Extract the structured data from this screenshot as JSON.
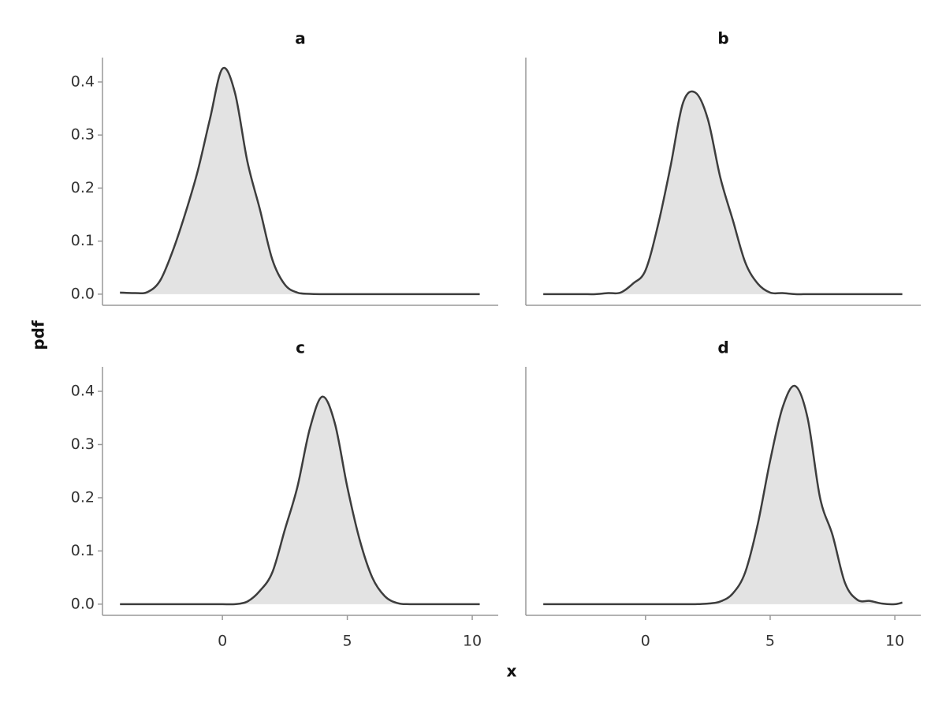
{
  "xlabel": "x",
  "ylabel": "pdf",
  "chart_data": [
    {
      "type": "area",
      "title": "a",
      "color": "#e3e3e3",
      "line_color": "#3d3d3d",
      "x": [
        -4.1,
        -3.5,
        -3,
        -2.5,
        -2,
        -1.5,
        -1,
        -0.5,
        0,
        0.5,
        1,
        1.5,
        2,
        2.5,
        3,
        3.5,
        4,
        4.5,
        5,
        5.5,
        6,
        6.5,
        7,
        7.5,
        8,
        8.5,
        9,
        9.5,
        10,
        10.3
      ],
      "values": [
        0.003,
        0.002,
        0.004,
        0.025,
        0.08,
        0.15,
        0.23,
        0.33,
        0.425,
        0.38,
        0.25,
        0.16,
        0.065,
        0.018,
        0.003,
        0.0005,
        0,
        0,
        0,
        0,
        0,
        0,
        0,
        0,
        0,
        0,
        0,
        0,
        0,
        0
      ],
      "xlim": [
        -4.8,
        11.04
      ],
      "ylim": [
        -0.021,
        0.446
      ],
      "yticks": [
        {
          "value": 0,
          "label": "0.0"
        },
        0.1,
        0.2,
        0.3,
        0.4
      ]
    },
    {
      "type": "area",
      "title": "b",
      "color": "#e3e3e3",
      "line_color": "#3d3d3d",
      "x": [
        -4.1,
        -3.5,
        -3,
        -2.5,
        -2,
        -1.5,
        -1,
        -0.5,
        0,
        0.5,
        1,
        1.5,
        2,
        2.5,
        3,
        3.5,
        4,
        4.5,
        5,
        5.5,
        6,
        6.5,
        7,
        7.5,
        8,
        8.5,
        9,
        9.5,
        10,
        10.3
      ],
      "values": [
        0,
        0,
        0,
        0,
        0,
        0.002,
        0.003,
        0.02,
        0.045,
        0.13,
        0.24,
        0.36,
        0.38,
        0.33,
        0.22,
        0.14,
        0.06,
        0.02,
        0.003,
        0.002,
        0,
        0,
        0,
        0,
        0,
        0,
        0,
        0,
        0,
        0
      ],
      "xlim": [
        -4.8,
        11.04
      ],
      "ylim": [
        -0.021,
        0.446
      ]
    },
    {
      "type": "area",
      "title": "c",
      "color": "#e3e3e3",
      "line_color": "#3d3d3d",
      "x": [
        -4.1,
        -3.5,
        -3,
        -2.5,
        -2,
        -1.5,
        -1,
        -0.5,
        0,
        0.5,
        1,
        1.5,
        2,
        2.5,
        3,
        3.5,
        4,
        4.5,
        5,
        5.5,
        6,
        6.5,
        7,
        7.5,
        8,
        8.5,
        9,
        9.5,
        10,
        10.3
      ],
      "values": [
        0,
        0,
        0,
        0,
        0,
        0,
        0,
        0,
        0,
        0,
        0.005,
        0.025,
        0.06,
        0.14,
        0.22,
        0.33,
        0.39,
        0.34,
        0.22,
        0.12,
        0.05,
        0.015,
        0.002,
        0,
        0,
        0,
        0,
        0,
        0,
        0
      ],
      "xlim": [
        -4.8,
        11.04
      ],
      "ylim": [
        -0.021,
        0.446
      ],
      "xticks": [
        0,
        5,
        10
      ],
      "yticks": [
        {
          "value": 0,
          "label": "0.0"
        },
        0.1,
        0.2,
        0.3,
        0.4
      ]
    },
    {
      "type": "area",
      "title": "d",
      "color": "#e3e3e3",
      "line_color": "#3d3d3d",
      "x": [
        -4.1,
        -3.5,
        -3,
        -2.5,
        -2,
        -1.5,
        -1,
        -0.5,
        0,
        0.5,
        1,
        1.5,
        2,
        2.5,
        3,
        3.5,
        4,
        4.5,
        5,
        5.5,
        6,
        6.5,
        7,
        7.5,
        8,
        8.5,
        9,
        9.5,
        10,
        10.3
      ],
      "values": [
        0,
        0,
        0,
        0,
        0,
        0,
        0,
        0,
        0,
        0,
        0,
        0,
        0,
        0.001,
        0.005,
        0.02,
        0.06,
        0.15,
        0.27,
        0.37,
        0.41,
        0.35,
        0.2,
        0.13,
        0.04,
        0.008,
        0.006,
        0.001,
        0,
        0.003
      ],
      "xlim": [
        -4.8,
        11.04
      ],
      "ylim": [
        -0.021,
        0.446
      ],
      "xticks": [
        0,
        5,
        10
      ]
    }
  ]
}
